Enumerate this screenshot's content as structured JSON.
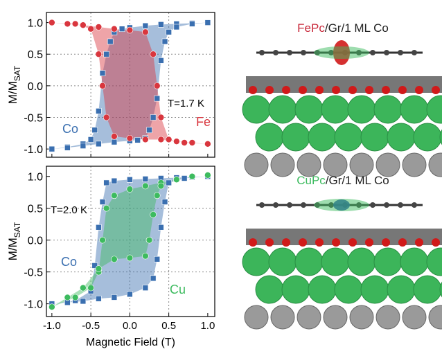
{
  "chart_data": [
    {
      "type": "line",
      "ylabel": "M/M",
      "ylabel_sub": "SAT",
      "xlim": [
        -1.07,
        1.09
      ],
      "ylim": [
        -1.13,
        1.16
      ],
      "xticks": [
        -1,
        -0.5,
        0,
        0.5,
        1
      ],
      "yticks": [
        {
          "value": 1,
          "label": "1.0"
        },
        0.5,
        {
          "value": 0,
          "label": "0.0"
        },
        -0.5,
        {
          "value": -1,
          "label": "-1.0"
        }
      ],
      "grid": true,
      "annotations": [
        "T=1.7 K"
      ],
      "series": [
        {
          "name": "Co",
          "color": "#3a6fb0",
          "marker": "square",
          "x": [
            1,
            0.8,
            0.6,
            0.4,
            0.2,
            0,
            -0.1,
            -0.2,
            -0.25,
            -0.3,
            -0.35,
            -0.4,
            -0.45,
            -0.5,
            -0.6,
            -0.8,
            -1,
            -1,
            -0.8,
            -0.6,
            -0.4,
            -0.2,
            0,
            0.1,
            0.2,
            0.25,
            0.3,
            0.35,
            0.4,
            0.45,
            0.5,
            0.6,
            0.8,
            1
          ],
          "values": [
            1,
            0.99,
            0.98,
            0.97,
            0.95,
            0.92,
            0.9,
            0.85,
            0.7,
            0.5,
            0.2,
            -0.4,
            -0.7,
            -0.85,
            -0.92,
            -0.97,
            -1,
            -1,
            -0.98,
            -0.95,
            -0.92,
            -0.89,
            -0.87,
            -0.86,
            -0.83,
            -0.7,
            -0.5,
            -0.2,
            0.4,
            0.7,
            0.85,
            0.93,
            0.98,
            1
          ]
        },
        {
          "name": "Fe",
          "color": "#d9363e",
          "marker": "circle",
          "x": [
            1,
            0.8,
            0.6,
            0.4,
            0.2,
            0,
            -0.2,
            -0.3,
            -0.35,
            -0.4,
            -0.5,
            -0.7,
            -1,
            -1,
            -0.8,
            -0.6,
            -0.4,
            -0.2,
            0,
            0.2,
            0.3,
            0.35,
            0.4,
            0.5,
            0.7,
            1
          ],
          "values": [
            -0.92,
            -0.9,
            -0.88,
            -0.85,
            -0.85,
            -0.83,
            -0.8,
            -0.5,
            0,
            0.5,
            0.9,
            0.98,
            1,
            1,
            0.98,
            0.96,
            0.93,
            0.9,
            0.88,
            0.85,
            0.5,
            0,
            -0.5,
            -0.85,
            -0.9,
            -0.92
          ]
        }
      ]
    },
    {
      "type": "line",
      "xlabel": "Magnetic Field (T)",
      "ylabel": "M/M",
      "ylabel_sub": "SAT",
      "xlim": [
        -1.07,
        1.09
      ],
      "ylim": [
        -1.2,
        1.16
      ],
      "xticks": [
        {
          "value": -1,
          "label": "-1.0"
        },
        -0.5,
        {
          "value": 0,
          "label": "0.0"
        },
        0.5,
        {
          "value": 1,
          "label": "1.0"
        }
      ],
      "yticks": [
        {
          "value": 1,
          "label": "1.0"
        },
        0.5,
        {
          "value": 0,
          "label": "0.0"
        },
        -0.5,
        {
          "value": -1,
          "label": "-1.0"
        }
      ],
      "grid": true,
      "annotations": [
        "T=2.0 K"
      ],
      "series": [
        {
          "name": "Co",
          "color": "#3a6fb0",
          "marker": "square",
          "x": [
            1,
            0.8,
            0.6,
            0.4,
            0.2,
            0,
            -0.2,
            -0.3,
            -0.35,
            -0.4,
            -0.45,
            -0.5,
            -0.7,
            -1,
            -1,
            -0.8,
            -0.6,
            -0.4,
            -0.2,
            0,
            0.2,
            0.3,
            0.35,
            0.4,
            0.45,
            0.5,
            0.7,
            1
          ],
          "values": [
            1,
            0.99,
            0.98,
            0.97,
            0.96,
            0.95,
            0.93,
            0.9,
            0.6,
            0.2,
            -0.4,
            -0.8,
            -0.95,
            -1,
            -1,
            -0.98,
            -0.96,
            -0.92,
            -0.9,
            -0.85,
            -0.75,
            -0.6,
            -0.3,
            0.2,
            0.6,
            0.9,
            0.97,
            1
          ]
        },
        {
          "name": "Cu",
          "color": "#3dbb5f",
          "marker": "circle",
          "x": [
            1,
            0.8,
            0.6,
            0.4,
            0.2,
            0,
            -0.2,
            -0.3,
            -0.35,
            -0.4,
            -0.5,
            -0.7,
            -1,
            -1,
            -0.8,
            -0.6,
            -0.4,
            -0.2,
            0,
            0.2,
            0.25,
            0.3,
            0.35,
            0.4,
            0.6,
            0.8,
            1
          ],
          "values": [
            1.02,
            1,
            0.95,
            0.9,
            0.85,
            0.8,
            0.7,
            0.5,
            0,
            -0.5,
            -0.75,
            -0.9,
            -1.05,
            -1.05,
            -0.9,
            -0.75,
            -0.45,
            -0.3,
            -0.28,
            -0.25,
            0,
            0.4,
            0.7,
            0.85,
            0.95,
            1,
            1.02
          ]
        }
      ]
    }
  ],
  "renderings": [
    {
      "molecule": "FePc",
      "rest": "/Gr/1 ML Co",
      "color": "#c8283a"
    },
    {
      "molecule": "CuPc",
      "rest": "/Gr/1 ML Co",
      "color": "#3dbb5f"
    }
  ]
}
